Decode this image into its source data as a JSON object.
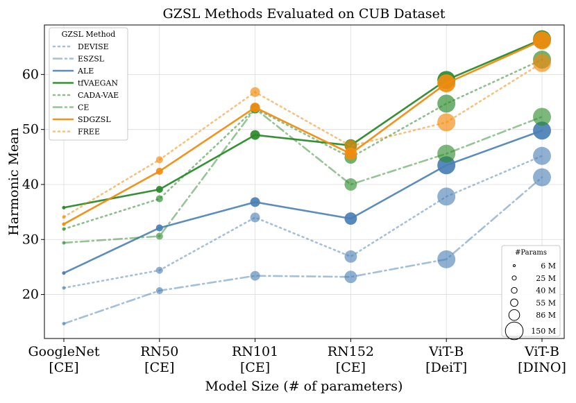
{
  "chart_data": {
    "type": "line",
    "title": "GZSL Methods Evaluated on CUB Dataset",
    "xlabel": "Model Size (# of parameters)",
    "ylabel": "Harmonic Mean",
    "ylim": [
      12,
      69
    ],
    "yticks": [
      20,
      30,
      40,
      50,
      60
    ],
    "grid": true,
    "categories": [
      {
        "line1": "GoogleNet",
        "line2": "[CE]"
      },
      {
        "line1": "RN50",
        "line2": "[CE]"
      },
      {
        "line1": "RN101",
        "line2": "[CE]"
      },
      {
        "line1": "RN152",
        "line2": "[CE]"
      },
      {
        "line1": "ViT-B",
        "line2": "[DeiT]"
      },
      {
        "line1": "ViT-B",
        "line2": "[DINO]"
      }
    ],
    "params_m": [
      6,
      25,
      40,
      55,
      86,
      86
    ],
    "legend_title": "GZSL Method",
    "series": [
      {
        "name": "DEVISE",
        "color": "#4a7fb5",
        "alpha": 0.5,
        "style": "dotted",
        "values": [
          21.2,
          24.4,
          34.0,
          26.9,
          37.8,
          45.2
        ]
      },
      {
        "name": "ESZSL",
        "color": "#4a7fb5",
        "alpha": 0.5,
        "style": "dashdot",
        "values": [
          14.7,
          20.7,
          23.4,
          23.2,
          26.4,
          41.3
        ]
      },
      {
        "name": "ALE",
        "color": "#4a7fb5",
        "alpha": 0.9,
        "style": "solid",
        "values": [
          23.9,
          32.1,
          36.8,
          33.8,
          43.5,
          49.8
        ]
      },
      {
        "name": "tfVAEGAN",
        "color": "#2b8a2b",
        "alpha": 0.95,
        "style": "solid",
        "values": [
          35.8,
          39.1,
          49.0,
          47.1,
          59.0,
          66.4
        ]
      },
      {
        "name": "CADA-VAE",
        "color": "#2b8a2b",
        "alpha": 0.55,
        "style": "dotted",
        "values": [
          31.9,
          37.4,
          53.8,
          44.9,
          54.7,
          62.7
        ]
      },
      {
        "name": "CE",
        "color": "#2b8a2b",
        "alpha": 0.5,
        "style": "dashdot",
        "values": [
          29.4,
          30.6,
          53.8,
          40.0,
          45.6,
          52.3
        ]
      },
      {
        "name": "SDGZSL",
        "color": "#f28c0f",
        "alpha": 0.95,
        "style": "solid",
        "values": [
          32.8,
          42.4,
          54.0,
          45.6,
          58.4,
          66.2
        ]
      },
      {
        "name": "FREE",
        "color": "#f28c0f",
        "alpha": 0.55,
        "style": "dotted",
        "values": [
          34.1,
          44.5,
          56.8,
          47.0,
          51.3,
          62.1
        ]
      }
    ],
    "size_legend": {
      "title": "#Params",
      "entries": [
        "6 M",
        "25 M",
        "40 M",
        "55 M",
        "86 M",
        "150 M"
      ],
      "values_m": [
        6,
        25,
        40,
        55,
        86,
        150
      ]
    }
  }
}
